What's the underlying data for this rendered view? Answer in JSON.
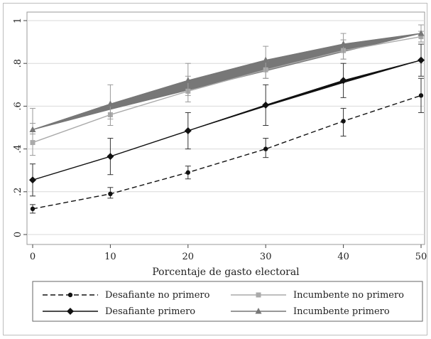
{
  "chart_data": {
    "type": "line",
    "title": "",
    "xlabel": "Porcentaje de gasto electoral",
    "ylabel": "",
    "x": [
      0,
      10,
      20,
      30,
      40,
      50
    ],
    "xlim": [
      0,
      50
    ],
    "ylim": [
      0,
      1
    ],
    "xticks": [
      "0",
      "10",
      "20",
      "30",
      "40",
      "50"
    ],
    "yticks": [
      "0",
      ".2",
      ".4",
      ".6",
      ".8",
      "1"
    ],
    "grid": true,
    "legend_position": "bottom",
    "series": [
      {
        "name": "Desafiante no primero",
        "style": "dashed",
        "marker": "circle",
        "color": "#111111",
        "values": [
          0.12,
          0.19,
          0.29,
          0.4,
          0.53,
          0.65
        ],
        "ci_low": [
          0.1,
          0.17,
          0.26,
          0.36,
          0.46,
          0.57
        ],
        "ci_high": [
          0.14,
          0.22,
          0.32,
          0.45,
          0.59,
          0.73
        ]
      },
      {
        "name": "Desafiante primero",
        "style": "solid",
        "marker": "diamond",
        "color": "#111111",
        "values": [
          0.255,
          0.365,
          0.485,
          0.605,
          0.72,
          0.815
        ],
        "band_low": [
          0.255,
          0.365,
          0.485,
          0.6,
          0.71,
          0.815
        ],
        "ci_low": [
          0.18,
          0.28,
          0.4,
          0.51,
          0.64,
          0.74
        ],
        "ci_high": [
          0.33,
          0.45,
          0.57,
          0.7,
          0.8,
          0.89
        ]
      },
      {
        "name": "Incumbente no primero",
        "style": "solid",
        "marker": "square",
        "color": "#aaaaaa",
        "values": [
          0.43,
          0.56,
          0.67,
          0.77,
          0.86,
          0.925
        ],
        "ci_low": [
          0.37,
          0.51,
          0.62,
          0.73,
          0.82,
          0.9
        ],
        "ci_high": [
          0.59,
          0.6,
          0.74,
          0.81,
          0.91,
          0.95
        ]
      },
      {
        "name": "Incumbente primero",
        "style": "solid",
        "marker": "triangle",
        "color": "#777777",
        "values": [
          0.49,
          0.61,
          0.72,
          0.815,
          0.89,
          0.94
        ],
        "band_low": [
          0.49,
          0.585,
          0.675,
          0.765,
          0.855,
          0.94
        ],
        "ci_low": [
          0.47,
          0.54,
          0.65,
          0.73,
          0.82,
          0.9
        ],
        "ci_high": [
          0.52,
          0.7,
          0.8,
          0.88,
          0.94,
          0.98
        ]
      }
    ]
  }
}
